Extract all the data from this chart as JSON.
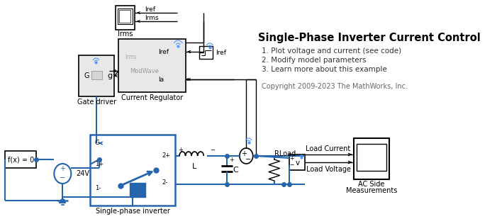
{
  "title": "Single-Phase Inverter Current Control",
  "subtitle_lines": [
    "1. Plot voltage and current (see code)",
    "2. Modify model parameters",
    "3. Learn more about this example"
  ],
  "copyright": "Copyright 2009-2023 The MathWorks, Inc.",
  "bg_color": "#ffffff",
  "blue": "#2565ae",
  "black": "#000000",
  "gray_block": "#e8e8e8",
  "dark_gray": "#555555"
}
